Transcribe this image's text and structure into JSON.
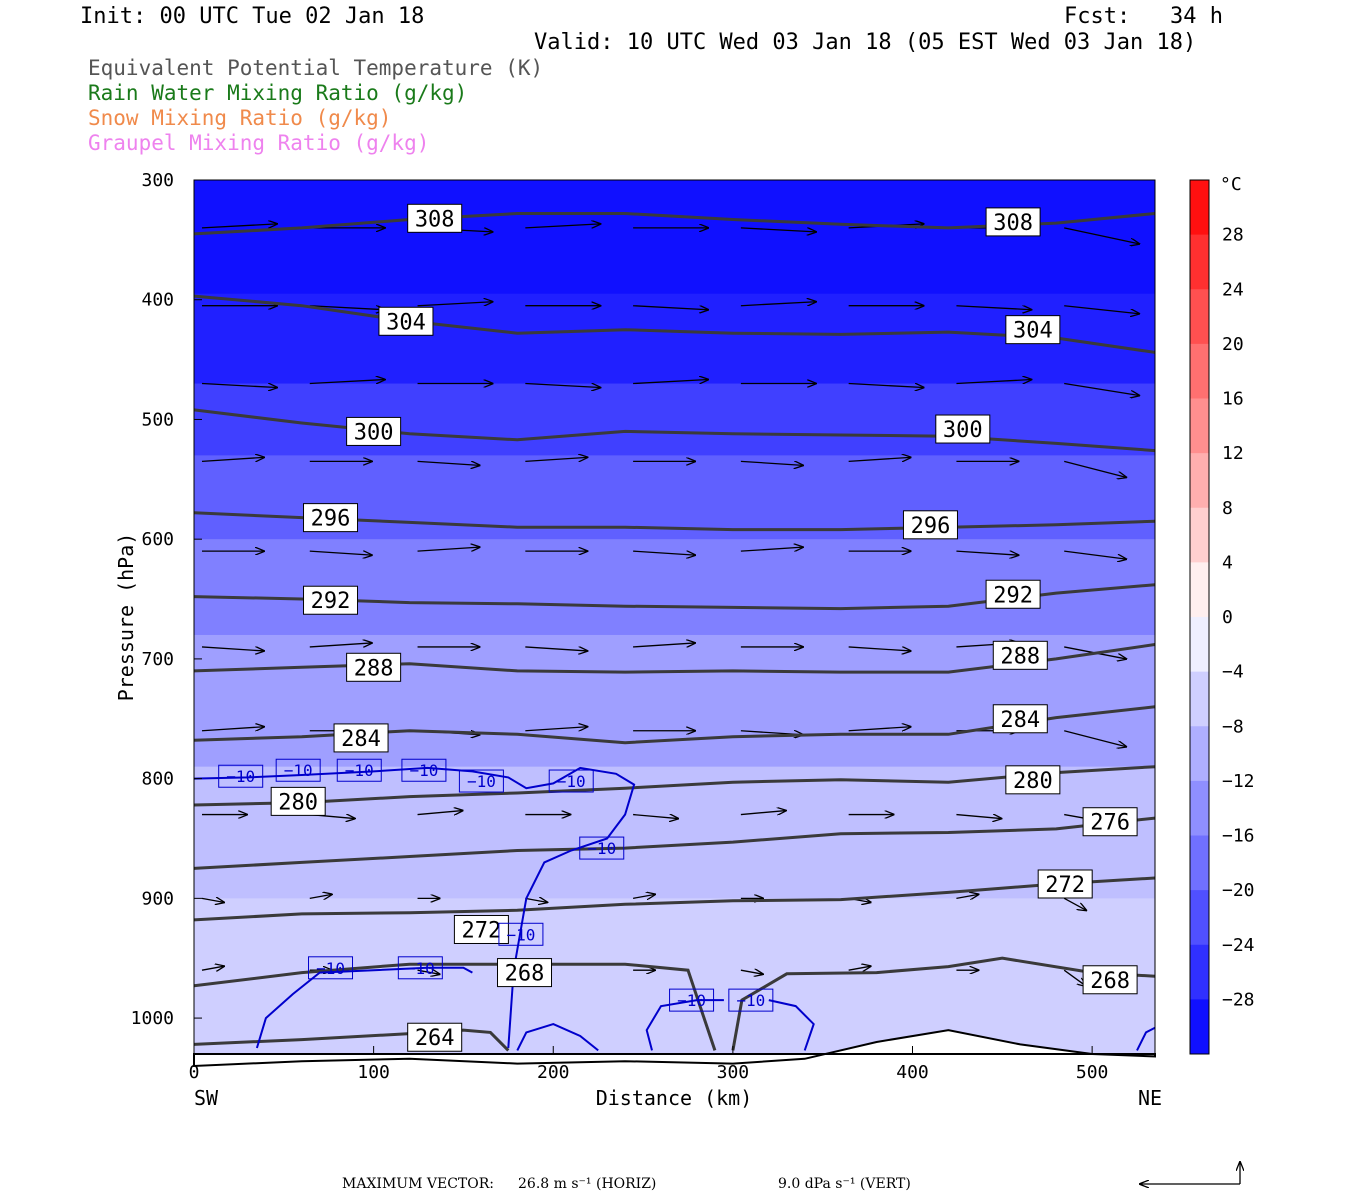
{
  "header": {
    "init": "Init: 00 UTC Tue 02 Jan 18",
    "fcst": "Fcst:   34 h",
    "valid": "Valid: 10 UTC Wed 03 Jan 18 (05 EST Wed 03 Jan 18)"
  },
  "legend": [
    {
      "text": "Equivalent Potential Temperature (K)",
      "color": "#555555"
    },
    {
      "text": "Rain Water Mixing Ratio (g/kg)",
      "color": "#1a7a1a"
    },
    {
      "text": "Snow Mixing Ratio (g/kg)",
      "color": "#f08a4b"
    },
    {
      "text": "Graupel Mixing Ratio (g/kg)",
      "color": "#ee82ee"
    }
  ],
  "chart_data": {
    "type": "cross-section",
    "xlabel": "Distance (km)",
    "ylabel": "Pressure (hPa)",
    "x_range": [
      0,
      535
    ],
    "y_range": [
      300,
      1030
    ],
    "x_ticks": [
      {
        "v": 0,
        "label": "0"
      },
      {
        "v": 100,
        "label": "100"
      },
      {
        "v": 200,
        "label": "200"
      },
      {
        "v": 300,
        "label": "300"
      },
      {
        "v": 400,
        "label": "400"
      },
      {
        "v": 500,
        "label": "500"
      }
    ],
    "y_ticks": [
      {
        "v": 300,
        "label": "300"
      },
      {
        "v": 400,
        "label": "400"
      },
      {
        "v": 500,
        "label": "500"
      },
      {
        "v": 600,
        "label": "600"
      },
      {
        "v": 700,
        "label": "700"
      },
      {
        "v": 800,
        "label": "800"
      },
      {
        "v": 900,
        "label": "900"
      },
      {
        "v": 1000,
        "label": "1000"
      }
    ],
    "endpoints": {
      "left": "SW",
      "right": "NE"
    },
    "colorbar": {
      "unit": "°C",
      "min": -32,
      "max": 32,
      "step": 4,
      "labels": [
        "28",
        "24",
        "20",
        "16",
        "12",
        "8",
        "4",
        "0",
        "−4",
        "−8",
        "−12",
        "−16",
        "−20",
        "−24",
        "−28"
      ],
      "label_values": [
        28,
        24,
        20,
        16,
        12,
        8,
        4,
        0,
        -4,
        -8,
        -12,
        -16,
        -20,
        -24,
        -28
      ]
    },
    "temperature_bands": [
      {
        "p_top": 300,
        "p_bot": 395,
        "c": -30
      },
      {
        "p_top": 395,
        "p_bot": 470,
        "c": -28
      },
      {
        "p_top": 470,
        "p_bot": 530,
        "c": -24
      },
      {
        "p_top": 530,
        "p_bot": 600,
        "c": -20
      },
      {
        "p_top": 600,
        "p_bot": 680,
        "c": -16
      },
      {
        "p_top": 680,
        "p_bot": 790,
        "c": -12
      },
      {
        "p_top": 790,
        "p_bot": 900,
        "c": -8
      },
      {
        "p_top": 900,
        "p_bot": 1030,
        "c": -6
      }
    ],
    "theta_e_contours": [
      {
        "label": "308",
        "pts": [
          [
            0,
            345
          ],
          [
            60,
            340
          ],
          [
            120,
            333
          ],
          [
            180,
            328
          ],
          [
            240,
            328
          ],
          [
            300,
            333
          ],
          [
            360,
            337
          ],
          [
            420,
            340
          ],
          [
            480,
            336
          ],
          [
            535,
            328
          ]
        ],
        "labels": [
          {
            "x": 134,
            "p": 332
          },
          {
            "x": 456,
            "p": 335
          }
        ]
      },
      {
        "label": "304",
        "pts": [
          [
            0,
            397
          ],
          [
            60,
            405
          ],
          [
            120,
            418
          ],
          [
            180,
            428
          ],
          [
            240,
            425
          ],
          [
            300,
            428
          ],
          [
            360,
            429
          ],
          [
            420,
            427
          ],
          [
            480,
            432
          ],
          [
            535,
            444
          ]
        ],
        "labels": [
          {
            "x": 118,
            "p": 418
          },
          {
            "x": 467,
            "p": 425
          }
        ]
      },
      {
        "label": "300",
        "pts": [
          [
            0,
            492
          ],
          [
            60,
            503
          ],
          [
            120,
            512
          ],
          [
            180,
            517
          ],
          [
            240,
            510
          ],
          [
            300,
            512
          ],
          [
            360,
            513
          ],
          [
            420,
            514
          ],
          [
            480,
            520
          ],
          [
            535,
            526
          ]
        ],
        "labels": [
          {
            "x": 100,
            "p": 510
          },
          {
            "x": 428,
            "p": 508
          }
        ]
      },
      {
        "label": "296",
        "pts": [
          [
            0,
            578
          ],
          [
            60,
            582
          ],
          [
            120,
            586
          ],
          [
            180,
            590
          ],
          [
            240,
            590
          ],
          [
            300,
            592
          ],
          [
            360,
            592
          ],
          [
            420,
            590
          ],
          [
            480,
            588
          ],
          [
            535,
            585
          ]
        ],
        "labels": [
          {
            "x": 76,
            "p": 582
          },
          {
            "x": 410,
            "p": 588
          }
        ]
      },
      {
        "label": "292",
        "pts": [
          [
            0,
            648
          ],
          [
            60,
            650
          ],
          [
            120,
            653
          ],
          [
            180,
            654
          ],
          [
            240,
            656
          ],
          [
            300,
            657
          ],
          [
            360,
            658
          ],
          [
            420,
            656
          ],
          [
            480,
            645
          ],
          [
            535,
            638
          ]
        ],
        "labels": [
          {
            "x": 76,
            "p": 651
          },
          {
            "x": 456,
            "p": 646
          }
        ]
      },
      {
        "label": "288",
        "pts": [
          [
            0,
            710
          ],
          [
            60,
            707
          ],
          [
            120,
            704
          ],
          [
            180,
            710
          ],
          [
            240,
            711
          ],
          [
            300,
            710
          ],
          [
            360,
            711
          ],
          [
            420,
            711
          ],
          [
            480,
            700
          ],
          [
            535,
            688
          ]
        ],
        "labels": [
          {
            "x": 100,
            "p": 707
          },
          {
            "x": 460,
            "p": 697
          }
        ]
      },
      {
        "label": "284",
        "pts": [
          [
            0,
            768
          ],
          [
            60,
            765
          ],
          [
            120,
            760
          ],
          [
            180,
            763
          ],
          [
            240,
            770
          ],
          [
            300,
            765
          ],
          [
            360,
            763
          ],
          [
            420,
            763
          ],
          [
            480,
            749
          ],
          [
            535,
            740
          ]
        ],
        "labels": [
          {
            "x": 93,
            "p": 766
          },
          {
            "x": 460,
            "p": 750
          }
        ]
      },
      {
        "label": "280",
        "pts": [
          [
            0,
            822
          ],
          [
            60,
            820
          ],
          [
            120,
            815
          ],
          [
            180,
            812
          ],
          [
            240,
            808
          ],
          [
            300,
            803
          ],
          [
            360,
            801
          ],
          [
            420,
            803
          ],
          [
            480,
            795
          ],
          [
            535,
            790
          ]
        ],
        "labels": [
          {
            "x": 58,
            "p": 819
          },
          {
            "x": 467,
            "p": 801
          }
        ]
      },
      {
        "label": "276",
        "pts": [
          [
            0,
            875
          ],
          [
            60,
            870
          ],
          [
            120,
            865
          ],
          [
            180,
            860
          ],
          [
            240,
            858
          ],
          [
            300,
            853
          ],
          [
            360,
            846
          ],
          [
            420,
            845
          ],
          [
            480,
            842
          ],
          [
            535,
            833
          ]
        ],
        "labels": [
          {
            "x": 510,
            "p": 836
          }
        ]
      },
      {
        "label": "272",
        "pts": [
          [
            0,
            918
          ],
          [
            60,
            913
          ],
          [
            120,
            912
          ],
          [
            180,
            910
          ],
          [
            240,
            905
          ],
          [
            300,
            902
          ],
          [
            360,
            901
          ],
          [
            420,
            895
          ],
          [
            480,
            888
          ],
          [
            535,
            883
          ]
        ],
        "labels": [
          {
            "x": 160,
            "p": 926
          },
          {
            "x": 485,
            "p": 888
          }
        ]
      },
      {
        "label": "268",
        "pts": [
          [
            0,
            973
          ],
          [
            60,
            962
          ],
          [
            120,
            955
          ],
          [
            180,
            955
          ],
          [
            240,
            955
          ],
          [
            275,
            960
          ],
          [
            290,
            1027
          ]
        ],
        "labels": [
          {
            "x": 184,
            "p": 962
          }
        ]
      },
      {
        "label": "268b",
        "pts": [
          [
            300,
            1027
          ],
          [
            305,
            985
          ],
          [
            330,
            963
          ],
          [
            380,
            962
          ],
          [
            420,
            957
          ],
          [
            450,
            950
          ],
          [
            500,
            962
          ],
          [
            535,
            965
          ]
        ],
        "labels": [
          {
            "x": 510,
            "p": 968
          }
        ]
      },
      {
        "label": "264",
        "pts": [
          [
            0,
            1022
          ],
          [
            60,
            1018
          ],
          [
            120,
            1013
          ],
          [
            150,
            1010
          ],
          [
            165,
            1012
          ],
          [
            175,
            1027
          ]
        ],
        "labels": [
          {
            "x": 134,
            "p": 1016
          }
        ]
      }
    ],
    "temp_minus10_contour": {
      "label": "−10",
      "color": "#0000cc",
      "pts": [
        [
          0,
          800
        ],
        [
          30,
          799
        ],
        [
          60,
          797
        ],
        [
          100,
          794
        ],
        [
          130,
          791
        ],
        [
          155,
          794
        ],
        [
          175,
          799
        ],
        [
          185,
          808
        ],
        [
          200,
          804
        ],
        [
          215,
          791
        ],
        [
          235,
          796
        ],
        [
          245,
          805
        ],
        [
          240,
          830
        ],
        [
          230,
          850
        ],
        [
          210,
          860
        ],
        [
          195,
          870
        ],
        [
          185,
          900
        ],
        [
          178,
          960
        ],
        [
          175,
          1025
        ]
      ],
      "labels": [
        {
          "x": 26,
          "p": 798
        },
        {
          "x": 58,
          "p": 793
        },
        {
          "x": 92,
          "p": 793
        },
        {
          "x": 128,
          "p": 793
        },
        {
          "x": 160,
          "p": 802
        },
        {
          "x": 210,
          "p": 802
        },
        {
          "x": 227,
          "p": 858
        },
        {
          "x": 182,
          "p": 930
        }
      ]
    },
    "temp_minus10_lower": [
      {
        "pts": [
          [
            35,
            1025
          ],
          [
            40,
            1000
          ],
          [
            55,
            980
          ],
          [
            70,
            962
          ],
          [
            100,
            960
          ],
          [
            130,
            958
          ],
          [
            150,
            958
          ],
          [
            155,
            962
          ]
        ],
        "labels": [
          {
            "x": 76,
            "p": 958
          },
          {
            "x": 126,
            "p": 958
          }
        ]
      },
      {
        "pts": [
          [
            180,
            1027
          ],
          [
            185,
            1012
          ],
          [
            200,
            1005
          ],
          [
            215,
            1015
          ],
          [
            225,
            1027
          ]
        ],
        "labels": []
      },
      {
        "pts": [
          [
            255,
            1027
          ],
          [
            252,
            1010
          ],
          [
            260,
            990
          ],
          [
            280,
            985
          ],
          [
            295,
            985
          ]
        ],
        "labels": [
          {
            "x": 277,
            "p": 985
          },
          {
            "x": 310,
            "p": 985
          }
        ]
      },
      {
        "pts": [
          [
            320,
            985
          ],
          [
            335,
            990
          ],
          [
            345,
            1005
          ],
          [
            340,
            1027
          ]
        ],
        "labels": []
      },
      {
        "pts": [
          [
            525,
            1027
          ],
          [
            530,
            1012
          ],
          [
            535,
            1008
          ]
        ],
        "labels": []
      }
    ],
    "max_vector": {
      "label": "MAXIMUM VECTOR:",
      "horiz": "26.8 m s⁻¹ (HORIZ)",
      "vert": "9.0 dPa s⁻¹ (VERT)"
    }
  }
}
